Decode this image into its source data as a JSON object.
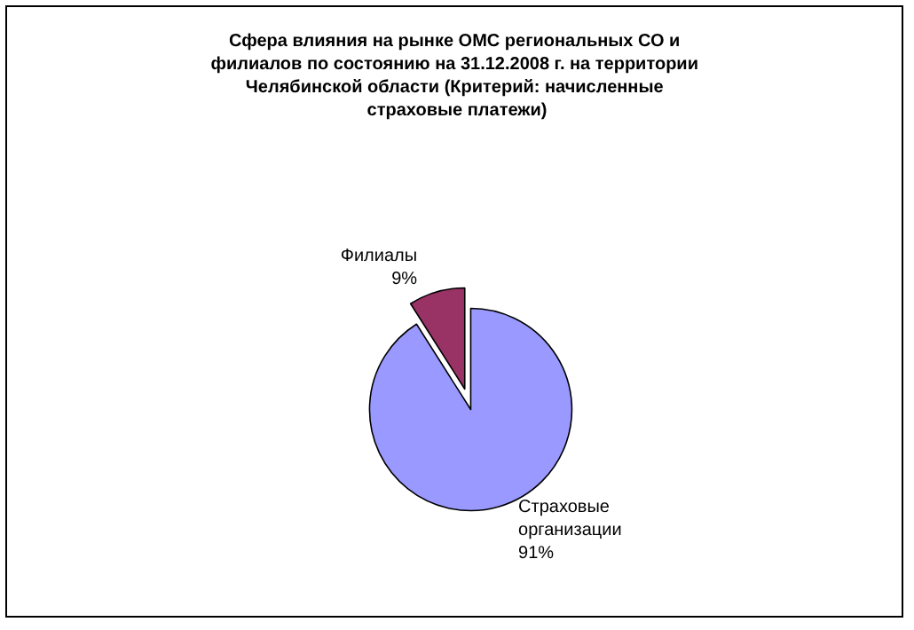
{
  "chart_data": {
    "type": "pie",
    "title": "Сфера влияния на рынке ОМС региональных СО и филиалов по состоянию на 31.12.2008 г. на территории Челябинской области (Критерий: начисленные страховые платежи)",
    "categories": [
      "Страховые организации",
      "Филиалы"
    ],
    "values": [
      91,
      9
    ],
    "colors": [
      "#9999ff",
      "#993366"
    ],
    "legend": false,
    "value_labels": [
      "91%",
      "9%"
    ]
  }
}
